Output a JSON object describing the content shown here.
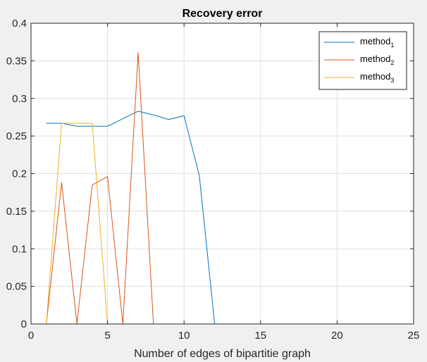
{
  "chart_data": {
    "type": "line",
    "title": "Recovery error",
    "xlabel": "Number of edges of bipartitie graph",
    "ylabel": "",
    "xlim": [
      0,
      25
    ],
    "ylim": [
      0,
      0.4
    ],
    "xticks": [
      0,
      5,
      10,
      15,
      20,
      25
    ],
    "yticks": [
      0,
      0.05,
      0.1,
      0.15,
      0.2,
      0.25,
      0.3,
      0.35,
      0.4
    ],
    "xtick_labels": [
      "0",
      "5",
      "10",
      "15",
      "20",
      "25"
    ],
    "ytick_labels": [
      "0",
      "0.05",
      "0.1",
      "0.15",
      "0.2",
      "0.25",
      "0.3",
      "0.35",
      "0.4"
    ],
    "grid": true,
    "legend_position": "top-right",
    "x": [
      1,
      2,
      3,
      4,
      5,
      6,
      7,
      8,
      9,
      10,
      11,
      12,
      13,
      14,
      15,
      16,
      17,
      18,
      19,
      20,
      21
    ],
    "series": [
      {
        "name": "method",
        "subscript": "1",
        "color": "#0072bd",
        "values": [
          0.267,
          0.267,
          0.263,
          0.263,
          0.263,
          0.273,
          0.283,
          0.278,
          0.272,
          0.277,
          0.197,
          0,
          0,
          0,
          0,
          0,
          0,
          0,
          0,
          0,
          0
        ]
      },
      {
        "name": "method",
        "subscript": "2",
        "color": "#d95319",
        "values": [
          0,
          0.188,
          0,
          0.185,
          0.196,
          0,
          0.361,
          0,
          0,
          0,
          0,
          0,
          0,
          0,
          0,
          0,
          0,
          0,
          0,
          0,
          0
        ]
      },
      {
        "name": "method",
        "subscript": "3",
        "color": "#edb120",
        "values": [
          0,
          0.267,
          0.267,
          0.267,
          0,
          0,
          0,
          0,
          0,
          0,
          0,
          0,
          0,
          0,
          0,
          0,
          0,
          0,
          0,
          0,
          0
        ]
      }
    ]
  }
}
